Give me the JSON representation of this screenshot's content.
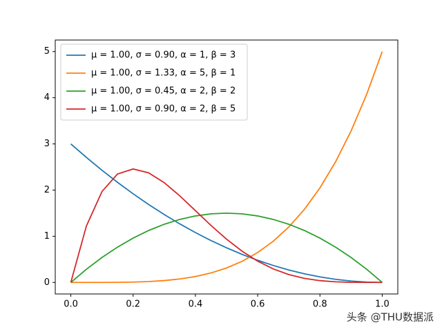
{
  "chart_data": {
    "type": "line",
    "x": [
      0,
      0.05,
      0.1,
      0.15,
      0.2,
      0.25,
      0.3,
      0.35,
      0.4,
      0.45,
      0.5,
      0.55,
      0.6,
      0.65,
      0.7,
      0.75,
      0.8,
      0.85,
      0.9,
      0.95,
      1
    ],
    "series": [
      {
        "name": "μ = 1.00,  σ = 0.90,  α = 1,  β = 3",
        "color": "#1f77b4",
        "values": [
          3,
          2.7075,
          2.43,
          2.1675,
          1.92,
          1.6875,
          1.47,
          1.2675,
          1.08,
          0.9075,
          0.75,
          0.6075,
          0.48,
          0.3675,
          0.27,
          0.1875,
          0.12,
          0.0675,
          0.03,
          0.0075,
          0
        ]
      },
      {
        "name": "μ = 1.00,  σ = 1.33,  α = 5,  β = 1",
        "color": "#ff7f0e",
        "values": [
          0,
          3e-05,
          0.0005,
          0.0025,
          0.008,
          0.0195,
          0.0405,
          0.075,
          0.128,
          0.205,
          0.3125,
          0.4575,
          0.648,
          0.8925,
          1.2005,
          1.582,
          2.048,
          2.61,
          3.2805,
          4.0725,
          5
        ]
      },
      {
        "name": "μ = 1.00,  σ = 0.45,  α = 2,  β = 2",
        "color": "#2ca02c",
        "values": [
          0,
          0.285,
          0.54,
          0.765,
          0.96,
          1.125,
          1.26,
          1.365,
          1.44,
          1.485,
          1.5,
          1.485,
          1.44,
          1.365,
          1.26,
          1.125,
          0.96,
          0.765,
          0.54,
          0.285,
          0
        ]
      },
      {
        "name": "μ = 1.00,  σ = 0.90,  α = 2,  β = 5",
        "color": "#d62728",
        "values": [
          0,
          1.2218,
          1.9683,
          2.349,
          2.4576,
          2.373,
          2.1609,
          1.8743,
          1.5552,
          1.2353,
          0.9375,
          0.6766,
          0.4608,
          0.2926,
          0.1701,
          0.0879,
          0.0384,
          0.0129,
          0.0027,
          0.0002,
          0
        ]
      }
    ],
    "xlim": [
      -0.05,
      1.05
    ],
    "ylim": [
      -0.25,
      5.25
    ],
    "xticks": [
      {
        "value": 0,
        "label": "0.0"
      },
      0.2,
      0.4,
      0.6,
      0.8,
      {
        "value": 1,
        "label": "1.0"
      }
    ],
    "yticks": [
      0,
      1,
      2,
      3,
      4,
      5
    ],
    "legend": "upper left",
    "watermark": "头条 @THU数据派"
  }
}
